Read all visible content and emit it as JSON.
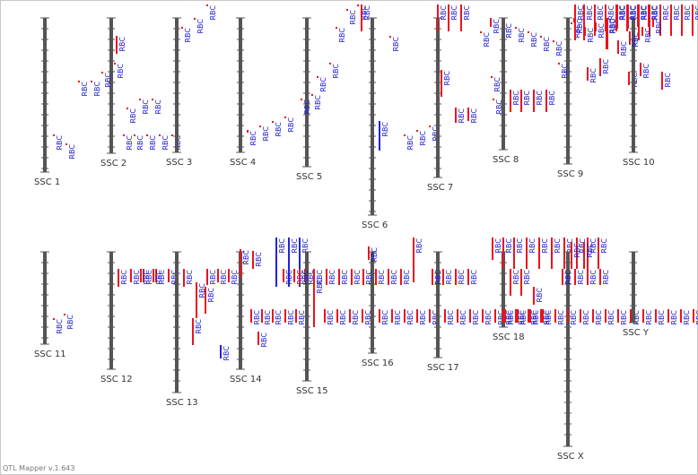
{
  "app": {
    "version_label": "QTL Mapper v.1.643"
  },
  "colors": {
    "chromosome": "#555555",
    "tick": "#555555",
    "qtl_red": "#e8141e",
    "qtl_blue": "#2222dd",
    "label": "#1a1acc"
  },
  "chromosomes": [
    {
      "name": "SSC 1",
      "qtls": [
        {
          "color": "red",
          "label": "RBC"
        },
        {
          "color": "red",
          "label": "RBC"
        }
      ]
    },
    {
      "name": "SSC 2",
      "qtls": [
        {
          "color": "red",
          "label": "RBC"
        },
        {
          "color": "red",
          "label": "RBC"
        },
        {
          "color": "red",
          "label": "RBC"
        },
        {
          "color": "red",
          "label": "RBC"
        },
        {
          "color": "red",
          "label": "RBC"
        },
        {
          "color": "red",
          "label": "RBC"
        },
        {
          "color": "red",
          "label": "RBC"
        },
        {
          "color": "red",
          "label": "RBC"
        },
        {
          "color": "red",
          "label": "RBC"
        },
        {
          "color": "red",
          "label": "RBC"
        },
        {
          "color": "red",
          "label": "RBC"
        },
        {
          "color": "red",
          "label": "RBC"
        },
        {
          "color": "red",
          "label": "RBC"
        }
      ]
    },
    {
      "name": "SSC 3",
      "qtls": [
        {
          "color": "red",
          "label": "RBC"
        },
        {
          "color": "red",
          "label": "RBC"
        },
        {
          "color": "red",
          "label": "RBC"
        }
      ]
    },
    {
      "name": "SSC 4",
      "qtls": [
        {
          "color": "red",
          "label": "RBC"
        },
        {
          "color": "red",
          "label": "RBC"
        },
        {
          "color": "red",
          "label": "RBC"
        },
        {
          "color": "red",
          "label": "RBC"
        }
      ]
    },
    {
      "name": "SSC 5",
      "qtls": [
        {
          "color": "red",
          "label": "RBC"
        },
        {
          "color": "red",
          "label": "RBC"
        },
        {
          "color": "red",
          "label": "RBC"
        },
        {
          "color": "red",
          "label": "RBC"
        }
      ]
    },
    {
      "name": "SSC 6",
      "qtls": [
        {
          "color": "red",
          "label": "RBC"
        },
        {
          "color": "red",
          "label": "RBC"
        },
        {
          "color": "red",
          "label": "RBC"
        },
        {
          "color": "red",
          "label": "RBC"
        },
        {
          "color": "red",
          "label": "RBC"
        },
        {
          "color": "blue",
          "label": "RBC"
        },
        {
          "color": "red",
          "label": "RBC"
        },
        {
          "color": "red",
          "label": "RBC"
        },
        {
          "color": "red",
          "label": "RBC"
        }
      ]
    },
    {
      "name": "SSC 7",
      "qtls": [
        {
          "color": "red",
          "label": "RBC"
        },
        {
          "color": "red",
          "label": "RBC"
        },
        {
          "color": "red",
          "label": "RBC"
        },
        {
          "color": "red",
          "label": "RBC"
        },
        {
          "color": "red",
          "label": "RBC"
        },
        {
          "color": "red",
          "label": "RBC"
        },
        {
          "color": "red",
          "label": "RBC"
        },
        {
          "color": "red",
          "label": "RBC"
        },
        {
          "color": "red",
          "label": "RBC"
        }
      ]
    },
    {
      "name": "SSC 8",
      "qtls": [
        {
          "color": "red",
          "label": "RBC"
        },
        {
          "color": "red",
          "label": "RBC"
        },
        {
          "color": "red",
          "label": "RBC"
        },
        {
          "color": "red",
          "label": "RBC"
        },
        {
          "color": "red",
          "label": "RBC"
        },
        {
          "color": "red",
          "label": "RBC"
        },
        {
          "color": "red",
          "label": "RBC"
        },
        {
          "color": "red",
          "label": "RBC"
        },
        {
          "color": "red",
          "label": "RBC"
        },
        {
          "color": "red",
          "label": "RBC"
        }
      ]
    },
    {
      "name": "SSC 9",
      "qtls": [
        {
          "color": "red",
          "label": "RBC"
        },
        {
          "color": "red",
          "label": "RBC"
        },
        {
          "color": "red",
          "label": "RBC"
        },
        {
          "color": "red",
          "label": "RBC"
        },
        {
          "color": "red",
          "label": "RBC"
        },
        {
          "color": "red",
          "label": "RBC"
        },
        {
          "color": "red",
          "label": "RBC"
        },
        {
          "color": "red",
          "label": "RBC"
        },
        {
          "color": "red",
          "label": "RBC"
        },
        {
          "color": "red",
          "label": "RBC"
        },
        {
          "color": "red",
          "label": "RBC"
        },
        {
          "color": "red",
          "label": "RBC"
        },
        {
          "color": "red",
          "label": "RBC"
        },
        {
          "color": "red",
          "label": "RBC"
        },
        {
          "color": "red",
          "label": "RBC"
        }
      ]
    },
    {
      "name": "SSC 10",
      "qtls": [
        {
          "color": "red",
          "label": "RBC"
        },
        {
          "color": "red",
          "label": "RBC"
        },
        {
          "color": "red",
          "label": "RBC"
        },
        {
          "color": "red",
          "label": "RBC"
        },
        {
          "color": "red",
          "label": "RBC"
        },
        {
          "color": "red",
          "label": "RBC"
        },
        {
          "color": "red",
          "label": "RBC"
        },
        {
          "color": "red",
          "label": "RBC"
        },
        {
          "color": "red",
          "label": "RBC"
        },
        {
          "color": "red",
          "label": "RBC"
        },
        {
          "color": "red",
          "label": "RBC"
        },
        {
          "color": "red",
          "label": "RBC"
        },
        {
          "color": "red",
          "label": "RBC"
        },
        {
          "color": "red",
          "label": "RBC"
        },
        {
          "color": "red",
          "label": "RBC"
        },
        {
          "color": "red",
          "label": "RBC"
        },
        {
          "color": "red",
          "label": "RBC"
        },
        {
          "color": "red",
          "label": "RBC"
        }
      ]
    },
    {
      "name": "SSC 11",
      "qtls": [
        {
          "color": "red",
          "label": "RBC"
        },
        {
          "color": "red",
          "label": "RBC"
        }
      ]
    },
    {
      "name": "SSC 12",
      "qtls": [
        {
          "color": "red",
          "label": "RBC"
        },
        {
          "color": "red",
          "label": "RBC"
        },
        {
          "color": "red",
          "label": "RBC"
        },
        {
          "color": "red",
          "label": "RBC"
        },
        {
          "color": "red",
          "label": "RBC"
        }
      ]
    },
    {
      "name": "SSC 13",
      "qtls": [
        {
          "color": "red",
          "label": "RBC"
        },
        {
          "color": "red",
          "label": "RBC"
        },
        {
          "color": "red",
          "label": "RBC"
        },
        {
          "color": "red",
          "label": "RBC"
        },
        {
          "color": "red",
          "label": "RBC"
        },
        {
          "color": "red",
          "label": "RBC"
        },
        {
          "color": "red",
          "label": "RBC"
        },
        {
          "color": "red",
          "label": "RBC"
        },
        {
          "color": "red",
          "label": "RBC"
        }
      ]
    },
    {
      "name": "SSC 14",
      "qtls": [
        {
          "color": "red",
          "label": "RBC"
        },
        {
          "color": "blue",
          "label": "RBC"
        },
        {
          "color": "red",
          "label": "RBC"
        },
        {
          "color": "red",
          "label": "RBC"
        },
        {
          "color": "red",
          "label": "RBC"
        },
        {
          "color": "red",
          "label": "RBC"
        },
        {
          "color": "blue",
          "label": "RBC"
        },
        {
          "color": "blue",
          "label": "RBC"
        },
        {
          "color": "blue",
          "label": "RBC"
        },
        {
          "color": "red",
          "label": "RBC"
        },
        {
          "color": "red",
          "label": "RBC"
        },
        {
          "color": "red",
          "label": "RBC"
        },
        {
          "color": "red",
          "label": "RBC"
        },
        {
          "color": "red",
          "label": "RBC"
        },
        {
          "color": "red",
          "label": "RBC"
        }
      ]
    },
    {
      "name": "SSC 15",
      "qtls": [
        {
          "color": "red",
          "label": "RBC"
        },
        {
          "color": "red",
          "label": "RBC"
        },
        {
          "color": "red",
          "label": "RBC"
        },
        {
          "color": "red",
          "label": "RBC"
        },
        {
          "color": "red",
          "label": "RBC"
        },
        {
          "color": "red",
          "label": "RBC"
        },
        {
          "color": "red",
          "label": "RBC"
        },
        {
          "color": "red",
          "label": "RBC"
        },
        {
          "color": "red",
          "label": "RBC"
        },
        {
          "color": "red",
          "label": "RBC"
        }
      ]
    },
    {
      "name": "SSC 16",
      "qtls": [
        {
          "color": "red",
          "label": "RBC"
        },
        {
          "color": "red",
          "label": "RBC"
        },
        {
          "color": "red",
          "label": "RBC"
        },
        {
          "color": "red",
          "label": "RBC"
        },
        {
          "color": "red",
          "label": "RBC"
        },
        {
          "color": "red",
          "label": "RBC"
        },
        {
          "color": "red",
          "label": "RBC"
        },
        {
          "color": "red",
          "label": "RBC"
        },
        {
          "color": "red",
          "label": "RBC"
        },
        {
          "color": "red",
          "label": "RBC"
        },
        {
          "color": "red",
          "label": "RBC"
        }
      ]
    },
    {
      "name": "SSC 17",
      "qtls": [
        {
          "color": "red",
          "label": "RBC"
        },
        {
          "color": "red",
          "label": "RBC"
        },
        {
          "color": "red",
          "label": "RBC"
        },
        {
          "color": "red",
          "label": "RBC"
        },
        {
          "color": "red",
          "label": "RBC"
        },
        {
          "color": "red",
          "label": "RBC"
        },
        {
          "color": "red",
          "label": "RBC"
        },
        {
          "color": "red",
          "label": "RBC"
        },
        {
          "color": "red",
          "label": "RBC"
        }
      ]
    },
    {
      "name": "SSC 18",
      "qtls": [
        {
          "color": "red",
          "label": "RBC"
        },
        {
          "color": "red",
          "label": "RBC"
        },
        {
          "color": "red",
          "label": "RBC"
        },
        {
          "color": "red",
          "label": "RBC"
        },
        {
          "color": "red",
          "label": "RBC"
        },
        {
          "color": "red",
          "label": "RBC"
        },
        {
          "color": "red",
          "label": "RBC"
        },
        {
          "color": "red",
          "label": "RBC"
        },
        {
          "color": "red",
          "label": "RBC"
        },
        {
          "color": "red",
          "label": "RBC"
        },
        {
          "color": "red",
          "label": "RBC"
        },
        {
          "color": "red",
          "label": "RBC"
        },
        {
          "color": "red",
          "label": "RBC"
        },
        {
          "color": "red",
          "label": "RBC"
        },
        {
          "color": "red",
          "label": "RBC"
        },
        {
          "color": "red",
          "label": "RBC"
        },
        {
          "color": "red",
          "label": "RBC"
        }
      ]
    },
    {
      "name": "SSC X",
      "qtls": [
        {
          "color": "red",
          "label": "RBC"
        },
        {
          "color": "red",
          "label": "RBC"
        },
        {
          "color": "red",
          "label": "RBC"
        },
        {
          "color": "red",
          "label": "RBC"
        },
        {
          "color": "red",
          "label": "RBC"
        },
        {
          "color": "red",
          "label": "RBC"
        },
        {
          "color": "red",
          "label": "RBC"
        },
        {
          "color": "red",
          "label": "RBC"
        },
        {
          "color": "red",
          "label": "RBC"
        },
        {
          "color": "red",
          "label": "RBC"
        },
        {
          "color": "red",
          "label": "RBC"
        },
        {
          "color": "red",
          "label": "RBC"
        },
        {
          "color": "red",
          "label": "RBC"
        },
        {
          "color": "red",
          "label": "RBC"
        },
        {
          "color": "red",
          "label": "RBC"
        },
        {
          "color": "red",
          "label": "RBC"
        },
        {
          "color": "red",
          "label": "RBC"
        },
        {
          "color": "red",
          "label": "RBC"
        },
        {
          "color": "red",
          "label": "RBC"
        },
        {
          "color": "red",
          "label": "RBC"
        },
        {
          "color": "red",
          "label": "RBC"
        },
        {
          "color": "red",
          "label": "RBC"
        }
      ]
    },
    {
      "name": "SSC Y",
      "qtls": []
    }
  ]
}
